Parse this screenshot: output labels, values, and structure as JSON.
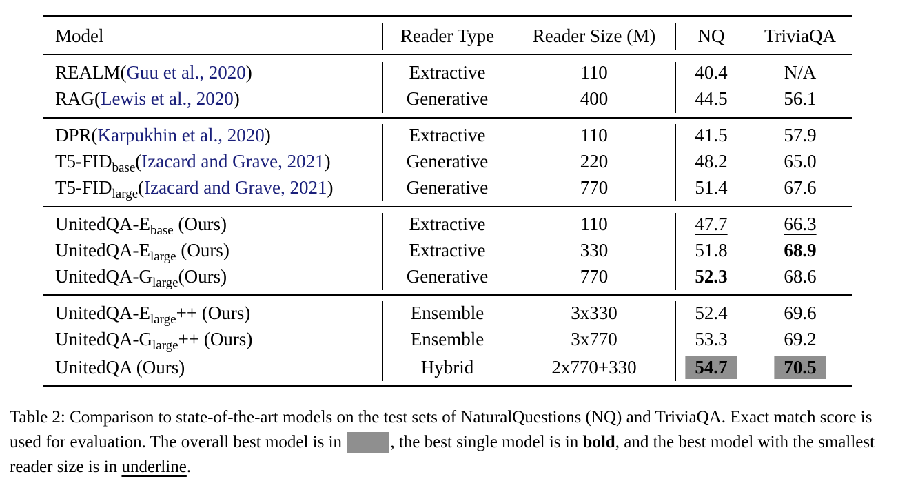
{
  "header": {
    "model": "Model",
    "reader_type": "Reader Type",
    "reader_size": "Reader Size (M)",
    "nq": "NQ",
    "triviaqa": "TriviaQA"
  },
  "rows": [
    {
      "name": "REALM",
      "sub": "",
      "suffix": "",
      "cite": "Guu et al.",
      "year": "2020",
      "type": "Extractive",
      "size": "110",
      "nq": "40.4",
      "tqa": "N/A"
    },
    {
      "name": "RAG",
      "sub": "",
      "suffix": "",
      "cite": "Lewis et al.",
      "year": "2020",
      "type": "Generative",
      "size": "400",
      "nq": "44.5",
      "tqa": "56.1"
    },
    {
      "name": "DPR",
      "sub": "",
      "suffix": "",
      "cite": "Karpukhin et al.",
      "year": "2020",
      "type": "Extractive",
      "size": "110",
      "nq": "41.5",
      "tqa": "57.9"
    },
    {
      "name": "T5-FID",
      "sub": "base",
      "suffix": "",
      "cite": "Izacard and Grave",
      "year": "2021",
      "type": "Generative",
      "size": "220",
      "nq": "48.2",
      "tqa": "65.0"
    },
    {
      "name": "T5-FID",
      "sub": "large",
      "suffix": "",
      "cite": "Izacard and Grave",
      "year": "2021",
      "type": "Generative",
      "size": "770",
      "nq": "51.4",
      "tqa": "67.6"
    },
    {
      "name": "UnitedQA-E",
      "sub": "base",
      "suffix": " (Ours)",
      "type": "Extractive",
      "size": "110",
      "nq": "47.7",
      "tqa": "66.3"
    },
    {
      "name": "UnitedQA-E",
      "sub": "large",
      "suffix": " (Ours)",
      "type": "Extractive",
      "size": "330",
      "nq": "51.8",
      "tqa": "68.9"
    },
    {
      "name": "UnitedQA-G",
      "sub": "large",
      "suffix": "(Ours)",
      "type": "Generative",
      "size": "770",
      "nq": "52.3",
      "tqa": "68.6"
    },
    {
      "name": "UnitedQA-E",
      "sub": "large",
      "suffix": "++ (Ours)",
      "type": "Ensemble",
      "size": "3x330",
      "nq": "52.4",
      "tqa": "69.6"
    },
    {
      "name": "UnitedQA-G",
      "sub": "large",
      "suffix": "++ (Ours)",
      "type": "Ensemble",
      "size": "3x770",
      "nq": "53.3",
      "tqa": "69.2"
    },
    {
      "name": "UnitedQA (Ours)",
      "sub": "",
      "suffix": "",
      "type": "Hybrid",
      "size": "2x770+330",
      "nq": "54.7",
      "tqa": "70.5"
    }
  ],
  "caption": {
    "part1": "Table 2: Comparison to state-of-the-art models on the test sets of NaturalQuestions (NQ) and TriviaQA. Exact match score is used for evaluation. The overall best model is in ",
    "part2": ", the best single model is in ",
    "bold_word": "bold",
    "part3": ", and the best model with the smallest reader size is in ",
    "underline_word": "underline",
    "part4": "."
  },
  "colors": {
    "citation": "#1a1f7a",
    "highlight": "#8f8f8f"
  }
}
